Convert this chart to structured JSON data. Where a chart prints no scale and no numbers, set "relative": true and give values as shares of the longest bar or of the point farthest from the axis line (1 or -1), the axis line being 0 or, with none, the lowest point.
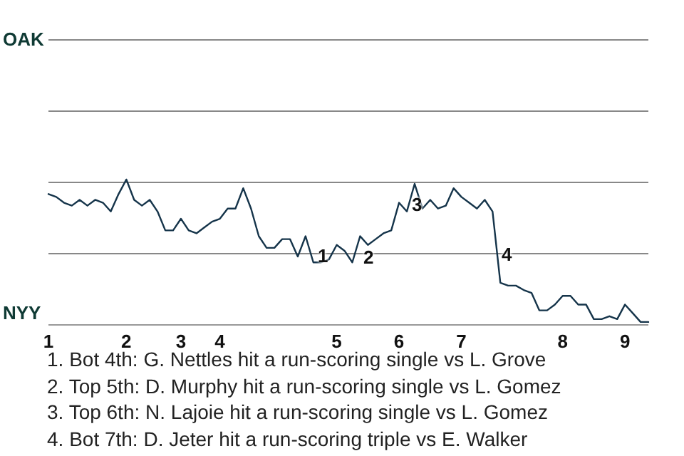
{
  "chart_data": {
    "type": "line",
    "relative": true,
    "categories": [
      "1",
      null,
      null,
      null,
      null,
      null,
      null,
      null,
      null,
      null,
      "2",
      null,
      null,
      null,
      null,
      null,
      null,
      "3",
      null,
      null,
      null,
      null,
      "4",
      null,
      null,
      null,
      null,
      null,
      null,
      null,
      null,
      null,
      null,
      null,
      null,
      null,
      null,
      "5",
      null,
      null,
      null,
      null,
      null,
      null,
      null,
      "6",
      null,
      null,
      null,
      null,
      null,
      null,
      null,
      "7",
      null,
      null,
      null,
      null,
      null,
      null,
      null,
      null,
      null,
      null,
      null,
      null,
      "8",
      null,
      null,
      null,
      null,
      null,
      null,
      null,
      "9",
      null,
      null,
      null
    ],
    "marker": "none",
    "line_style": "solid",
    "ref_lines": [
      {
        "axis": "y",
        "value": 0.49,
        "color": "#888888"
      },
      {
        "axis": "y",
        "value": 0.98,
        "color": "#888888"
      },
      {
        "axis": "y",
        "value": 1.47,
        "color": "#888888"
      },
      {
        "axis": "y",
        "value": 1.96,
        "color": "#888888"
      }
    ],
    "series": [
      {
        "color": "#15344a",
        "values": [
          0.9,
          0.88,
          0.84,
          0.82,
          0.86,
          0.82,
          0.86,
          0.84,
          0.78,
          0.9,
          1,
          0.86,
          0.82,
          0.86,
          0.78,
          0.65,
          0.65,
          0.73,
          0.65,
          0.63,
          0.67,
          0.71,
          0.73,
          0.8,
          0.8,
          0.94,
          0.8,
          0.61,
          0.53,
          0.53,
          0.59,
          0.59,
          0.47,
          0.61,
          0.43,
          0.43,
          0.45,
          0.55,
          0.51,
          0.43,
          0.61,
          0.55,
          0.59,
          0.63,
          0.65,
          0.84,
          0.78,
          0.97,
          0.8,
          0.86,
          0.8,
          0.82,
          0.94,
          0.88,
          0.84,
          0.8,
          0.86,
          0.78,
          0.29,
          0.27,
          0.27,
          0.24,
          0.22,
          0.1,
          0.1,
          0.14,
          0.2,
          0.2,
          0.14,
          0.14,
          0.04,
          0.04,
          0.06,
          0.04,
          0.14,
          0.08,
          0.02,
          0.02
        ]
      }
    ],
    "annotations": [
      "OAK",
      "NYY",
      "1",
      "2",
      "3",
      "4",
      "1. Bot 4th: G. Nettles hit a run-scoring single vs L. Grove",
      "2. Top 5th: D. Murphy hit a run-scoring single vs L. Gomez",
      "3. Top 6th: N. Lajoie hit a run-scoring single vs L. Gomez",
      "4. Bot 7th: D. Jeter hit a run-scoring triple vs E. Walker"
    ]
  }
}
